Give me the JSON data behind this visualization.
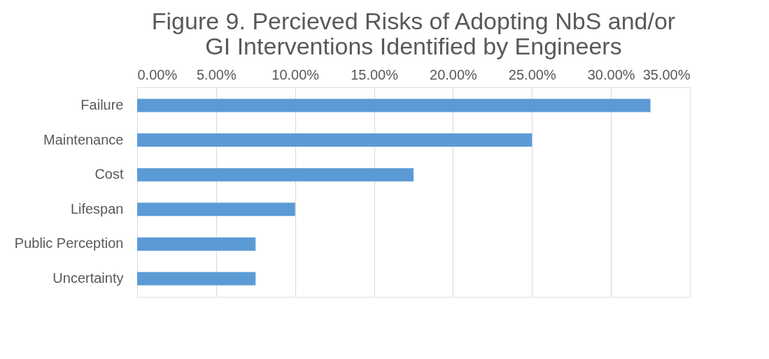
{
  "chart_data": {
    "type": "bar",
    "orientation": "horizontal",
    "title": [
      "Figure 9. Percieved Risks of Adopting NbS and/or",
      "GI Interventions Identified by Engineers"
    ],
    "categories": [
      "Failure",
      "Maintenance",
      "Cost",
      "Lifespan",
      "Public Perception",
      "Uncertainty"
    ],
    "values": [
      32.5,
      25.0,
      17.5,
      10.0,
      7.5,
      7.5
    ],
    "color": "#5b9bd5",
    "xlim": [
      0,
      35
    ],
    "xticks": [
      {
        "value": 0,
        "label": "0.00%"
      },
      {
        "value": 5,
        "label": "5.00%"
      },
      {
        "value": 10,
        "label": "10.00%"
      },
      {
        "value": 15,
        "label": "15.00%"
      },
      {
        "value": 20,
        "label": "20.00%"
      },
      {
        "value": 25,
        "label": "25.00%"
      },
      {
        "value": 30,
        "label": "30.00%"
      },
      {
        "value": 35,
        "label": "35.00%"
      }
    ],
    "grid": "x"
  }
}
